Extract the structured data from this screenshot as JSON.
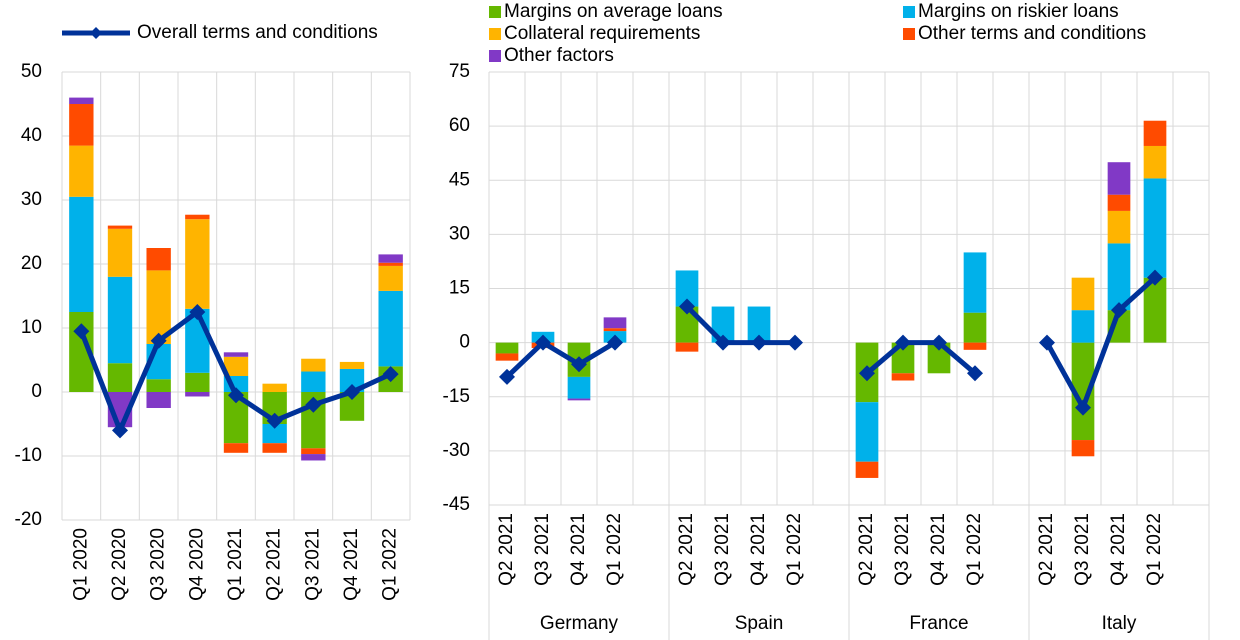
{
  "chart_data": [
    {
      "type": "bar",
      "categories": [
        "Q1 2020",
        "Q2 2020",
        "Q3 2020",
        "Q4 2020",
        "Q1 2021",
        "Q2 2021",
        "Q3 2021",
        "Q4 2021",
        "Q1 2022"
      ],
      "series": [
        {
          "color": "#65b800",
          "values": [
            12.5,
            4.5,
            2,
            3,
            -8,
            -5,
            -8.8,
            -4.5,
            4
          ]
        },
        {
          "color": "#00b1ea",
          "values": [
            18,
            13.5,
            5.5,
            10,
            2.5,
            -3,
            3.2,
            3.6,
            11.8
          ]
        },
        {
          "color": "#ffb400",
          "values": [
            8,
            7.5,
            11.5,
            14,
            3,
            1.3,
            2,
            1.1,
            3.9
          ]
        },
        {
          "color": "#ff4b00",
          "values": [
            6.5,
            0.5,
            3.5,
            0.7,
            -1.5,
            -1.5,
            -0.9,
            0,
            0.5
          ]
        },
        {
          "color": "#8139c6",
          "values": [
            1,
            -5.5,
            -2.5,
            -0.7,
            0.7,
            0,
            -1,
            0,
            1.3
          ]
        }
      ],
      "line": {
        "name": "Overall terms and conditions",
        "color": "#003299",
        "values": [
          9.5,
          -6,
          8,
          12.5,
          -0.5,
          -4.5,
          -2,
          0,
          2.8
        ]
      },
      "ylim": [
        -20,
        50
      ],
      "yticks": [
        -20,
        -10,
        0,
        10,
        20,
        30,
        40,
        50
      ],
      "grid": true
    },
    {
      "type": "bar",
      "groups": [
        "Germany",
        "Spain",
        "France",
        "Italy"
      ],
      "categories": [
        "Q2 2021",
        "Q3 2021",
        "Q4 2021",
        "Q1 2022",
        "Q2 2021",
        "Q3 2021",
        "Q4 2021",
        "Q1 2022",
        "Q2 2021",
        "Q3 2021",
        "Q4 2021",
        "Q1 2022",
        "Q2 2021",
        "Q3 2021",
        "Q4 2021",
        "Q1 2022"
      ],
      "series": [
        {
          "name": "Margins on average loans",
          "color": "#65b800",
          "values": [
            -3,
            0,
            -9.5,
            0,
            10,
            0,
            0,
            0,
            -16.5,
            -8.5,
            -8.5,
            8.3,
            0,
            -27,
            9,
            18
          ]
        },
        {
          "name": "Margins on riskier loans",
          "color": "#00b1ea",
          "values": [
            0,
            3,
            -6,
            3.2,
            10,
            10,
            10,
            0,
            -16.5,
            0,
            0,
            16.7,
            0,
            9,
            18.5,
            27.5
          ]
        },
        {
          "name": "Collateral requirements",
          "color": "#ffb400",
          "values": [
            0,
            0,
            0,
            0,
            0,
            0,
            0,
            0,
            0,
            0,
            0,
            0,
            0,
            9,
            9,
            9
          ]
        },
        {
          "name": "Other terms and conditions",
          "color": "#ff4b00",
          "values": [
            -2,
            -1.5,
            0,
            0.8,
            -2.5,
            0,
            0,
            0,
            -4.5,
            -2,
            0,
            -2,
            0,
            -4.5,
            4.5,
            7
          ]
        },
        {
          "name": "Other factors",
          "color": "#8139c6",
          "values": [
            0,
            0,
            -0.5,
            3,
            0,
            0,
            0,
            0,
            0,
            0,
            0,
            0,
            0,
            0,
            9,
            0
          ]
        }
      ],
      "line": {
        "color": "#003299",
        "values": [
          -9.5,
          0,
          -6,
          0,
          10,
          0,
          0,
          0,
          -8.5,
          0,
          0,
          -8.5,
          0,
          -18,
          9,
          18
        ]
      },
      "ylim": [
        -45,
        75
      ],
      "yticks": [
        -45,
        -30,
        -15,
        0,
        15,
        30,
        45,
        60,
        75
      ],
      "grid": true
    }
  ]
}
